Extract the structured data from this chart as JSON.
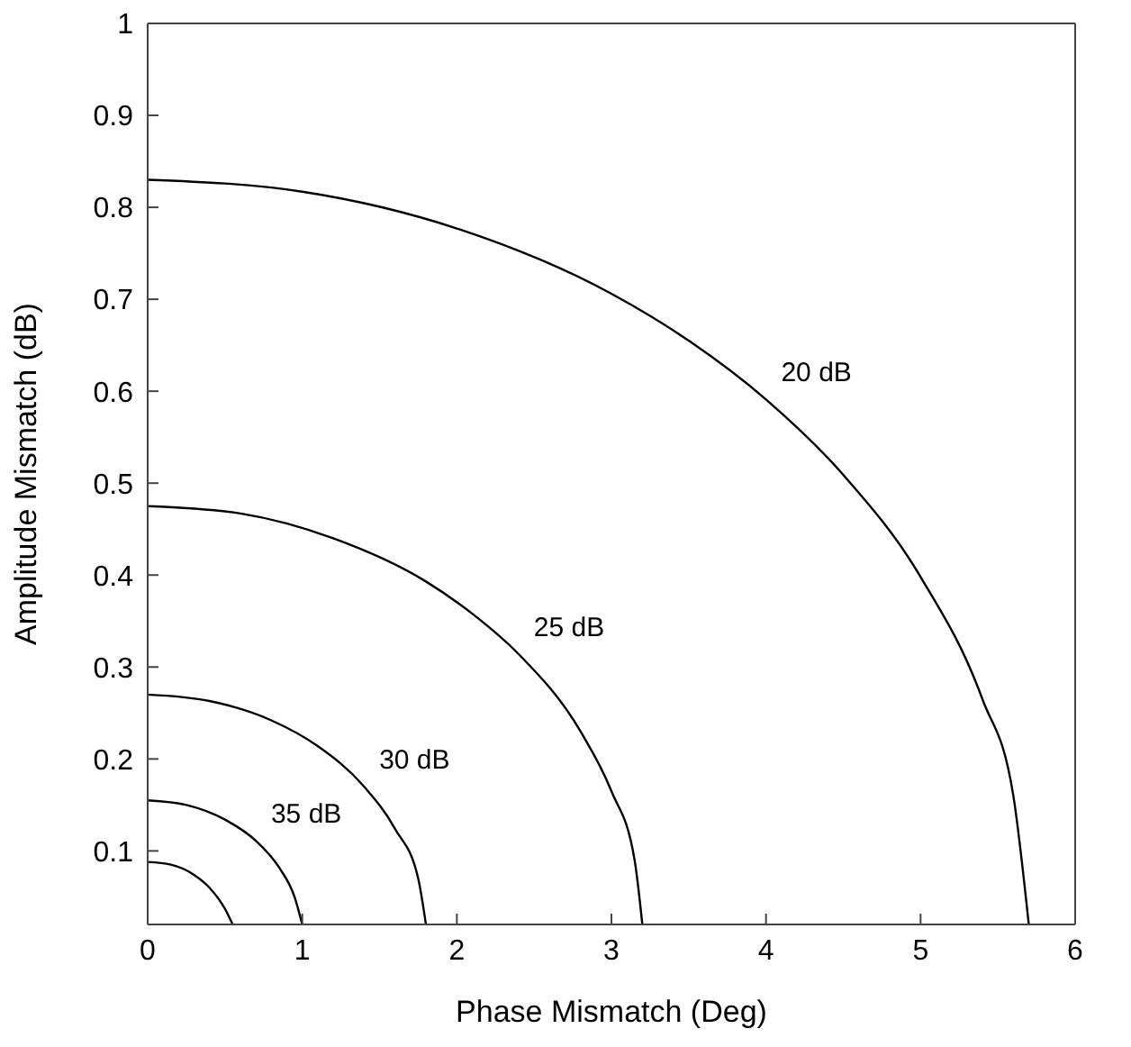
{
  "chart_data": {
    "type": "line",
    "xlabel": "Phase Mismatch (Deg)",
    "ylabel": "Amplitude Mismatch (dB)",
    "xlim": [
      0,
      6
    ],
    "xticks": [
      0,
      1,
      2,
      3,
      4,
      5,
      6
    ],
    "ylim": [
      0.02,
      1
    ],
    "yticks": [
      0.1,
      0.2,
      0.3,
      0.4,
      0.5,
      0.6,
      0.7,
      0.8,
      0.9,
      1
    ],
    "marker": "none",
    "line_style": "solid",
    "series": [
      {
        "name": "20 dB",
        "color": "#000000",
        "x": [
          0,
          1,
          2,
          3,
          3.5,
          4,
          4.5,
          5,
          5.4,
          5.6,
          5.7
        ],
        "values": [
          0.83,
          0.817,
          0.777,
          0.706,
          0.655,
          0.591,
          0.509,
          0.398,
          0.265,
          0.16,
          0.02
        ]
      },
      {
        "name": "25 dB",
        "color": "#000000",
        "x": [
          0,
          0.6,
          1.2,
          1.8,
          2.1,
          2.4,
          2.8,
          3.0,
          3.15,
          3.2
        ],
        "values": [
          0.475,
          0.467,
          0.44,
          0.393,
          0.358,
          0.314,
          0.23,
          0.165,
          0.09,
          0.02
        ]
      },
      {
        "name": "30 dB",
        "color": "#000000",
        "x": [
          0,
          0.4,
          0.8,
          1.1,
          1.4,
          1.6,
          1.75,
          1.8
        ],
        "values": [
          0.27,
          0.263,
          0.242,
          0.214,
          0.17,
          0.124,
          0.07,
          0.02
        ]
      },
      {
        "name": "35 dB",
        "color": "#000000",
        "x": [
          0,
          0.25,
          0.5,
          0.7,
          0.85,
          0.95,
          1.0
        ],
        "values": [
          0.155,
          0.15,
          0.134,
          0.111,
          0.082,
          0.05,
          0.02
        ]
      },
      {
        "color": "#000000",
        "x": [
          0,
          0.15,
          0.3,
          0.4,
          0.5,
          0.55
        ],
        "values": [
          0.088,
          0.085,
          0.074,
          0.06,
          0.037,
          0.02
        ]
      }
    ]
  }
}
